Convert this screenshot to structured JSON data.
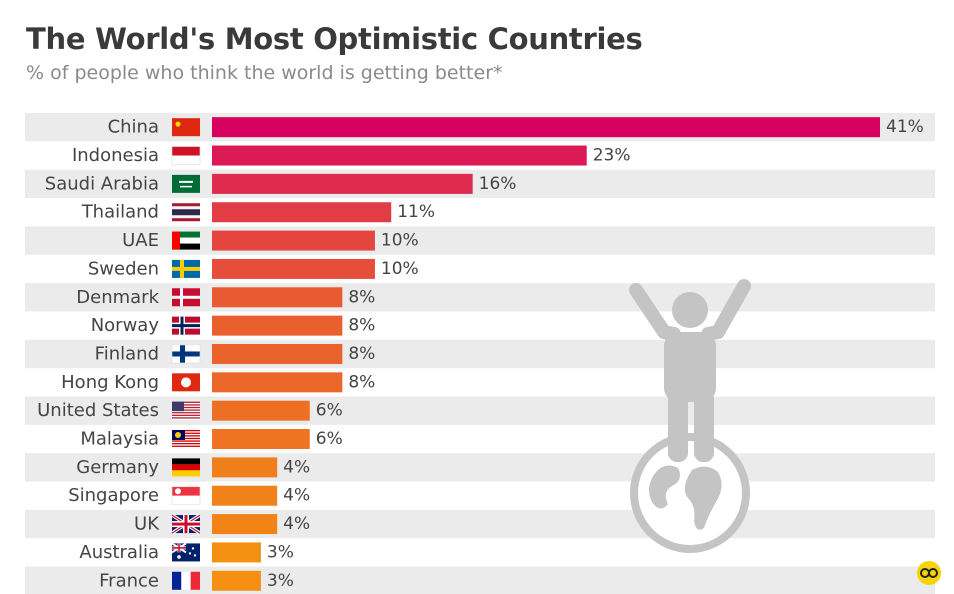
{
  "title": "The World's Most Optimistic Countries",
  "subtitle": "% of people who think the world is getting better*",
  "chart_data": {
    "type": "bar",
    "orientation": "horizontal",
    "title": "The World's Most Optimistic Countries",
    "subtitle": "% of people who think the world is getting better*",
    "unit": "%",
    "xlim": [
      0,
      41
    ],
    "grid": false,
    "legend": "none",
    "categories": [
      "China",
      "Indonesia",
      "Saudi Arabia",
      "Thailand",
      "UAE",
      "Sweden",
      "Denmark",
      "Norway",
      "Finland",
      "Hong Kong",
      "United States",
      "Malaysia",
      "Germany",
      "Singapore",
      "UK",
      "Australia",
      "France"
    ],
    "values": [
      41,
      23,
      16,
      11,
      10,
      10,
      8,
      8,
      8,
      8,
      6,
      6,
      4,
      4,
      4,
      3,
      3
    ],
    "value_labels": [
      "41%",
      "23%",
      "16%",
      "11%",
      "10%",
      "10%",
      "8%",
      "8%",
      "8%",
      "8%",
      "6%",
      "6%",
      "4%",
      "4%",
      "4%",
      "3%",
      "3%"
    ],
    "bar_colors": [
      "#d6005f",
      "#db1a55",
      "#de2b4e",
      "#e23d45",
      "#e4463f",
      "#e64e3b",
      "#e85a32",
      "#e9602e",
      "#ea632c",
      "#eb672a",
      "#ed6f24",
      "#ef7321",
      "#f07f1b",
      "#f18119",
      "#f28317",
      "#f38f12",
      "#f48f12"
    ],
    "flags": [
      "cn",
      "id",
      "sa",
      "th",
      "ae",
      "se",
      "dk",
      "no",
      "fi",
      "hk",
      "us",
      "my",
      "de",
      "sg",
      "uk",
      "au",
      "fr"
    ]
  },
  "illustration": {
    "icon": "person-on-globe-icon"
  },
  "logo": {
    "icon": "statista-logo-icon",
    "color": "#f5d400"
  }
}
